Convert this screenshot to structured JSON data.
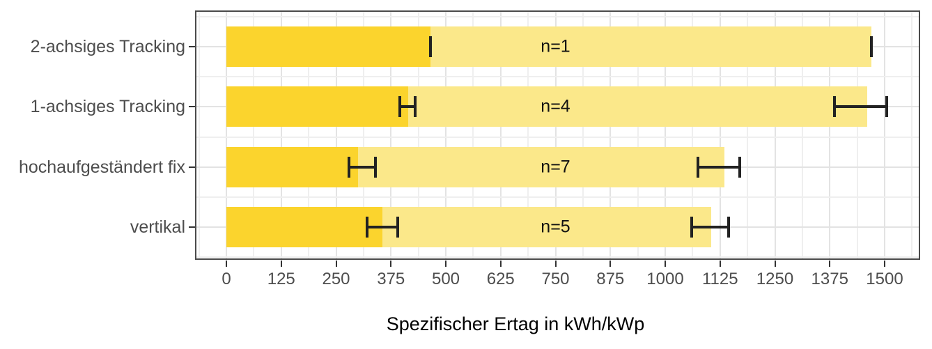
{
  "chart_data": {
    "type": "bar",
    "orientation": "horizontal",
    "title": "",
    "xlabel": "Spezifischer Ertag in kWh/kWp",
    "ylabel": "",
    "xlim": [
      0,
      1500
    ],
    "x_major_ticks": [
      0,
      125,
      250,
      375,
      500,
      625,
      750,
      875,
      1000,
      1125,
      1250,
      1375,
      1500
    ],
    "x_minor_step": 62.5,
    "grid": true,
    "legend": false,
    "categories": [
      "2-achsiges Tracking",
      "1-achsiges Tracking",
      "hochaufgeständert fix",
      "vertikal"
    ],
    "n_labels": [
      "n=1",
      "n=4",
      "n=7",
      "n=5"
    ],
    "n_label_x": 750,
    "series": [
      {
        "name": "light-yellow",
        "color": "#FBE88A",
        "values": [
          1470,
          1460,
          1135,
          1105
        ],
        "error_low": [
          1470,
          1385,
          1075,
          1060
        ],
        "error_high": [
          1470,
          1505,
          1170,
          1145
        ]
      },
      {
        "name": "dark-yellow",
        "color": "#FBD42D",
        "values": [
          465,
          415,
          300,
          355
        ],
        "error_low": [
          465,
          395,
          280,
          320
        ],
        "error_high": [
          465,
          430,
          340,
          390
        ]
      }
    ]
  },
  "colors": {
    "bar_dark": "#FBD42D",
    "bar_light": "#FBE88A",
    "errorbar": "#222222",
    "grid_major": "#E3E3E3",
    "grid_minor": "#EFEFEF",
    "panel_border": "#4A4A4A",
    "tick_text": "#4D4D4D",
    "title_text": "#000000"
  }
}
